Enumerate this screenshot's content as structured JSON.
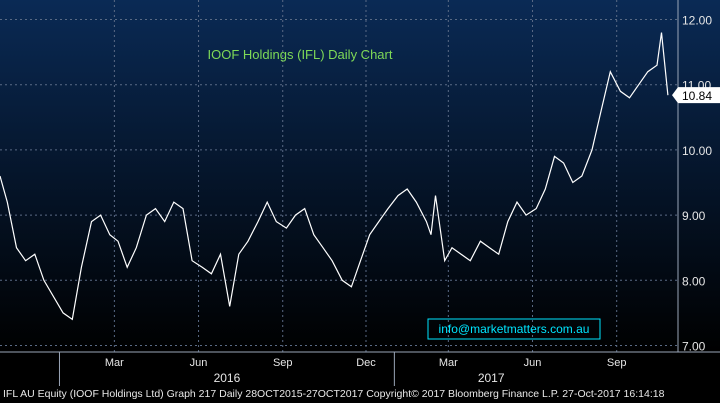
{
  "chart_data": {
    "type": "line",
    "title": "IOOF Holdings (IFL) Daily Chart",
    "watermark": "info@marketmatters.com.au",
    "last_price_label": "10.84",
    "ylim": [
      6.9,
      12.3
    ],
    "yticks": [
      7.0,
      8.0,
      9.0,
      10.0,
      11.0,
      12.0
    ],
    "ytick_labels": [
      "7.00",
      "8.00",
      "9.00",
      "10.00",
      "11.00",
      "12.00"
    ],
    "x_months": [
      "Mar",
      "Jun",
      "Sep",
      "Dec",
      "Mar",
      "Jun",
      "Sep"
    ],
    "x_years": [
      "2016",
      "2017"
    ],
    "x": [
      "2015-10-28",
      "2015-11-05",
      "2015-11-15",
      "2015-11-25",
      "2015-12-05",
      "2015-12-15",
      "2016-01-05",
      "2016-01-15",
      "2016-01-25",
      "2016-02-05",
      "2016-02-15",
      "2016-02-25",
      "2016-03-05",
      "2016-03-15",
      "2016-03-25",
      "2016-04-05",
      "2016-04-15",
      "2016-04-25",
      "2016-05-05",
      "2016-05-15",
      "2016-05-25",
      "2016-06-05",
      "2016-06-15",
      "2016-06-25",
      "2016-07-05",
      "2016-07-15",
      "2016-07-25",
      "2016-08-05",
      "2016-08-15",
      "2016-08-25",
      "2016-09-05",
      "2016-09-15",
      "2016-09-25",
      "2016-10-05",
      "2016-10-15",
      "2016-10-25",
      "2016-11-05",
      "2016-11-15",
      "2016-11-25",
      "2016-12-05",
      "2016-12-15",
      "2016-12-25",
      "2017-01-05",
      "2017-01-15",
      "2017-01-25",
      "2017-02-05",
      "2017-02-10",
      "2017-02-15",
      "2017-02-25",
      "2017-03-05",
      "2017-03-15",
      "2017-03-25",
      "2017-04-05",
      "2017-04-15",
      "2017-04-25",
      "2017-05-05",
      "2017-05-15",
      "2017-05-25",
      "2017-06-05",
      "2017-06-15",
      "2017-06-25",
      "2017-07-05",
      "2017-07-15",
      "2017-07-25",
      "2017-08-05",
      "2017-08-15",
      "2017-08-25",
      "2017-09-05",
      "2017-09-15",
      "2017-09-25",
      "2017-10-05",
      "2017-10-15",
      "2017-10-20",
      "2017-10-27"
    ],
    "y": [
      9.6,
      9.2,
      8.5,
      8.3,
      8.4,
      8.0,
      7.5,
      7.4,
      8.2,
      8.9,
      9.0,
      8.7,
      8.6,
      8.2,
      8.5,
      9.0,
      9.1,
      8.9,
      9.2,
      9.1,
      8.3,
      8.2,
      8.1,
      8.4,
      7.6,
      8.4,
      8.6,
      8.9,
      9.2,
      8.9,
      8.8,
      9.0,
      9.1,
      8.7,
      8.5,
      8.3,
      8.0,
      7.9,
      8.3,
      8.7,
      8.9,
      9.1,
      9.3,
      9.4,
      9.2,
      8.9,
      8.7,
      9.3,
      8.3,
      8.5,
      8.4,
      8.3,
      8.6,
      8.5,
      8.4,
      8.9,
      9.2,
      9.0,
      9.1,
      9.4,
      9.9,
      9.8,
      9.5,
      9.6,
      10.0,
      10.6,
      11.2,
      10.9,
      10.8,
      11.0,
      11.2,
      11.3,
      11.8,
      10.84
    ],
    "grid": true,
    "colors": {
      "line": "#ffffff",
      "background_top": "#0a2a55",
      "background_bottom": "#000000",
      "title": "#7ed957",
      "watermark": "#00e5ff",
      "grid": "#5a6a85"
    }
  },
  "footer": {
    "text": "IFL AU Equity (IOOF Holdings Ltd) Graph 217  Daily 28OCT2015-27OCT2017 Copyright© 2017 Bloomberg Finance L.P. 27-Oct-2017 16:14:18"
  }
}
